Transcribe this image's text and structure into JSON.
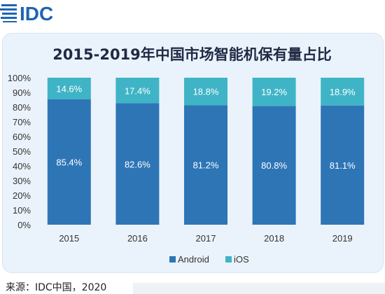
{
  "logo": {
    "text": "IDC"
  },
  "source_label": "来源：IDC中国，2020",
  "chart_data": {
    "type": "bar",
    "stacked": true,
    "title": "2015-2019年中国市场智能机保有量占比",
    "categories": [
      "2015",
      "2016",
      "2017",
      "2018",
      "2019"
    ],
    "series": [
      {
        "name": "Android",
        "values": [
          85.4,
          82.6,
          81.2,
          80.8,
          81.1
        ],
        "labels": [
          "85.4%",
          "82.6%",
          "81.2%",
          "80.8%",
          "81.1%"
        ],
        "color": "#2e75b6"
      },
      {
        "name": "iOS",
        "values": [
          14.6,
          17.4,
          18.8,
          19.2,
          18.9
        ],
        "labels": [
          "14.6%",
          "17.4%",
          "18.8%",
          "19.2%",
          "18.9%"
        ],
        "color": "#3fb4c6"
      }
    ],
    "y_ticks": [
      "0%",
      "10%",
      "20%",
      "30%",
      "40%",
      "50%",
      "60%",
      "70%",
      "80%",
      "90%",
      "100%"
    ],
    "ylim": [
      0,
      100
    ],
    "legend_position": "bottom",
    "grid": false
  }
}
